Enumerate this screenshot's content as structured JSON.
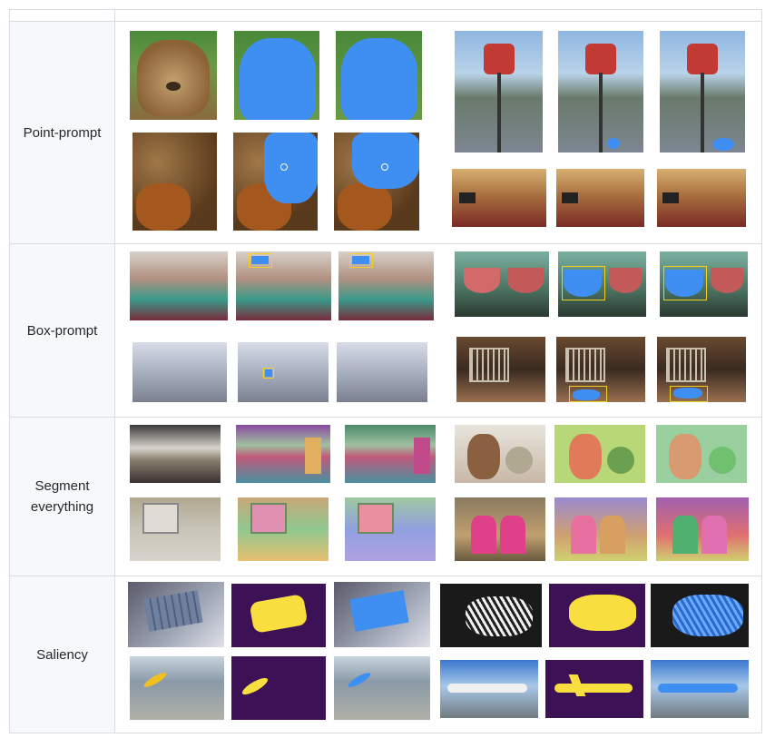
{
  "table": {
    "header": [
      "",
      ""
    ],
    "rows": [
      {
        "label": "Point-prompt"
      },
      {
        "label": "Box-prompt"
      },
      {
        "label": "Segment everything"
      },
      {
        "label": "Saliency"
      }
    ]
  },
  "colors": {
    "mask_blue": "#3f8ff2",
    "saliency_bg": "#3d1155",
    "saliency_fg": "#f8de3e",
    "box_yellow": "#f2d020",
    "label_bg": "#f6f8fa",
    "border": "#d9dde3"
  }
}
